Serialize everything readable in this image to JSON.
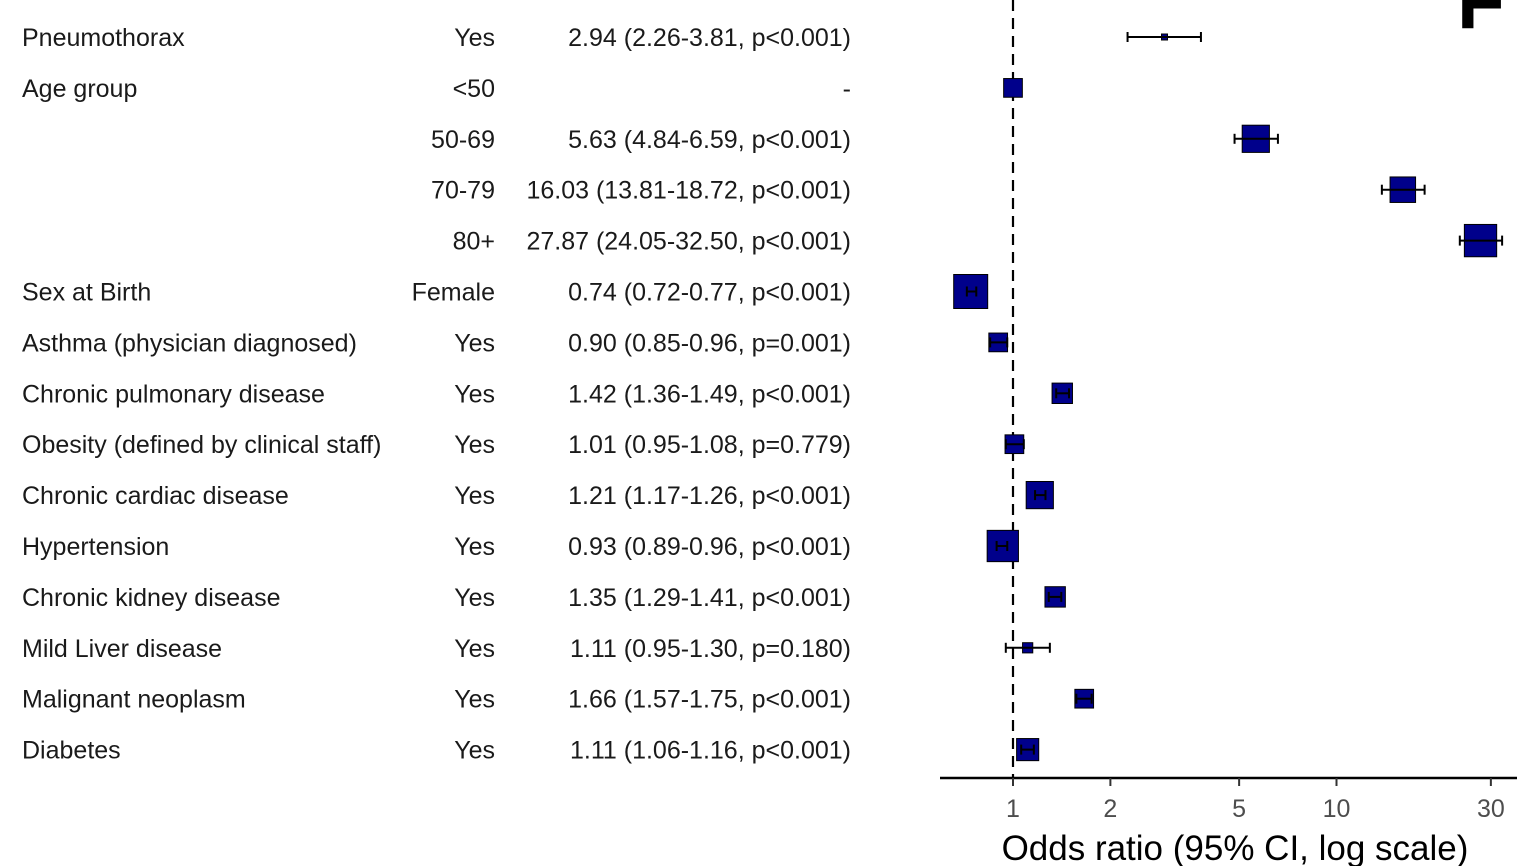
{
  "chart_data": {
    "type": "forest",
    "xlabel": "Odds ratio (95% CI, log scale)",
    "xscale": "log",
    "xlim": [
      0.58,
      35
    ],
    "xticks": [
      1,
      2,
      5,
      10,
      30
    ],
    "reference_line": 1,
    "marker_color": "#00008B",
    "panel_letter": "F",
    "rows": [
      {
        "variable": "Pneumothorax",
        "level": "Yes",
        "text": "2.94 (2.26-3.81, p<0.001)",
        "or": 2.94,
        "lo": 2.26,
        "hi": 3.81,
        "weight": 0.15
      },
      {
        "variable": "Age group",
        "level": "<50",
        "text": "-",
        "or": 1.0,
        "lo": 1.0,
        "hi": 1.0,
        "weight": 0.55
      },
      {
        "variable": "",
        "level": "50-69",
        "text": "5.63 (4.84-6.59, p<0.001)",
        "or": 5.63,
        "lo": 4.84,
        "hi": 6.59,
        "weight": 0.8
      },
      {
        "variable": "",
        "level": "70-79",
        "text": "16.03 (13.81-18.72, p<0.001)",
        "or": 16.03,
        "lo": 13.81,
        "hi": 18.72,
        "weight": 0.75
      },
      {
        "variable": "",
        "level": "80+",
        "text": "27.87 (24.05-32.50, p<0.001)",
        "or": 27.87,
        "lo": 24.05,
        "hi": 32.5,
        "weight": 0.95
      },
      {
        "variable": "Sex at Birth",
        "level": "Female",
        "text": "0.74 (0.72-0.77, p<0.001)",
        "or": 0.74,
        "lo": 0.72,
        "hi": 0.77,
        "weight": 1.0
      },
      {
        "variable": "Asthma (physician diagnosed)",
        "level": "Yes",
        "text": "0.90 (0.85-0.96, p=0.001)",
        "or": 0.9,
        "lo": 0.85,
        "hi": 0.96,
        "weight": 0.55
      },
      {
        "variable": "Chronic pulmonary disease",
        "level": "Yes",
        "text": "1.42 (1.36-1.49, p<0.001)",
        "or": 1.42,
        "lo": 1.36,
        "hi": 1.49,
        "weight": 0.6
      },
      {
        "variable": "Obesity (defined by clinical staff)",
        "level": "Yes",
        "text": "1.01 (0.95-1.08, p=0.779)",
        "or": 1.01,
        "lo": 0.95,
        "hi": 1.08,
        "weight": 0.55
      },
      {
        "variable": "Chronic cardiac disease",
        "level": "Yes",
        "text": "1.21 (1.17-1.26, p<0.001)",
        "or": 1.21,
        "lo": 1.17,
        "hi": 1.26,
        "weight": 0.8
      },
      {
        "variable": "Hypertension",
        "level": "Yes",
        "text": "0.93 (0.89-0.96, p<0.001)",
        "or": 0.93,
        "lo": 0.89,
        "hi": 0.96,
        "weight": 0.92
      },
      {
        "variable": "Chronic kidney disease",
        "level": "Yes",
        "text": "1.35 (1.29-1.41, p<0.001)",
        "or": 1.35,
        "lo": 1.29,
        "hi": 1.41,
        "weight": 0.6
      },
      {
        "variable": "Mild Liver disease",
        "level": "Yes",
        "text": "1.11 (0.95-1.30, p=0.180)",
        "or": 1.11,
        "lo": 0.95,
        "hi": 1.3,
        "weight": 0.3
      },
      {
        "variable": "Malignant neoplasm",
        "level": "Yes",
        "text": "1.66 (1.57-1.75, p<0.001)",
        "or": 1.66,
        "lo": 1.57,
        "hi": 1.75,
        "weight": 0.55
      },
      {
        "variable": "Diabetes",
        "level": "Yes",
        "text": "1.11 (1.06-1.16, p<0.001)",
        "or": 1.11,
        "lo": 1.06,
        "hi": 1.16,
        "weight": 0.65
      }
    ]
  }
}
